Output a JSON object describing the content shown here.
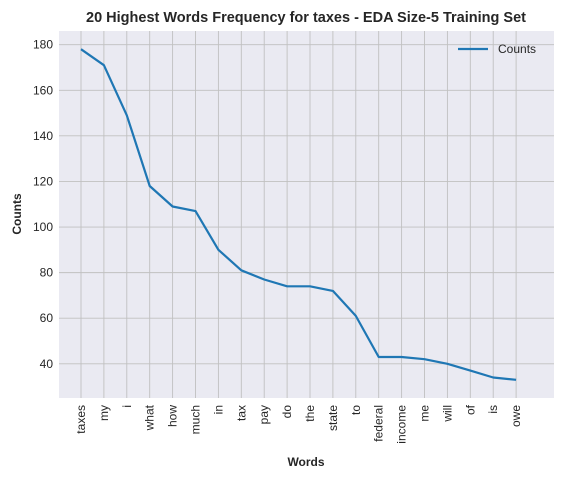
{
  "chart_data": {
    "type": "line",
    "title": "20 Highest Words Frequency for taxes - EDA Size-5 Training Set",
    "xlabel": "Words",
    "ylabel": "Counts",
    "categories": [
      "taxes",
      "my",
      "i",
      "what",
      "how",
      "much",
      "in",
      "tax",
      "pay",
      "do",
      "the",
      "state",
      "to",
      "federal",
      "income",
      "me",
      "will",
      "of",
      "is",
      "owe"
    ],
    "series": [
      {
        "name": "Counts",
        "values": [
          178,
          171,
          149,
          118,
          109,
          107,
          90,
          81,
          77,
          74,
          74,
          72,
          61,
          43,
          43,
          42,
          40,
          37,
          34,
          33
        ]
      }
    ],
    "yticks": [
      40,
      60,
      80,
      100,
      120,
      140,
      160,
      180
    ],
    "ylim": [
      25,
      186
    ],
    "grid": true,
    "legend": "top-right",
    "colors": {
      "line": "#1f77b4",
      "plot_bg": "#eaeaf2",
      "grid": "#c0c0c0"
    }
  }
}
